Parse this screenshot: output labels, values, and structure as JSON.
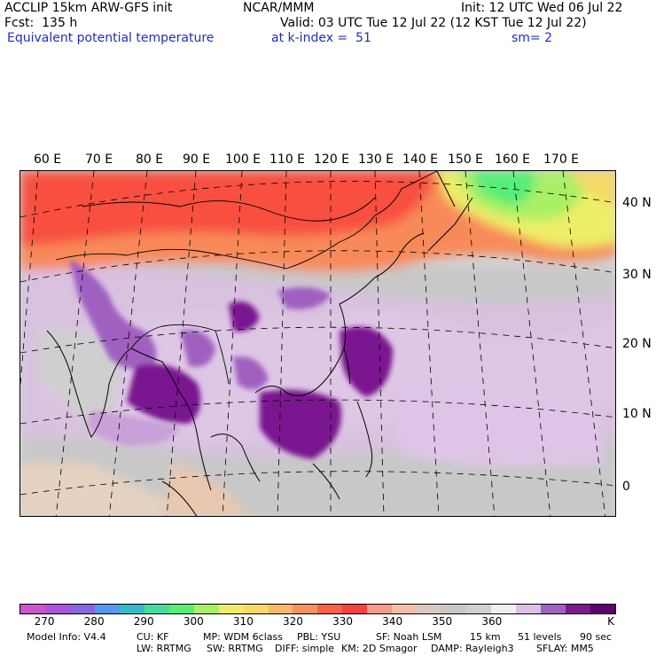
{
  "header": {
    "line1_left": "ACCLIP 15km ARW-GFS init",
    "line1_center": "NCAR/MMM",
    "line1_right": "Init: 12 UTC Wed 06 Jul 22",
    "line2_left": "Fcst:  135 h",
    "line2_right": "Valid: 03 UTC Tue 12 Jul 22 (12 KST Tue 12 Jul 22)",
    "field_name": "Equivalent potential temperature",
    "level": "at k-index =  51",
    "smooth": "sm= 2"
  },
  "map": {
    "lon_labels": [
      "60 E",
      "70 E",
      "80 E",
      "90 E",
      "100 E",
      "110 E",
      "120 E",
      "130 E",
      "140 E",
      "150 E",
      "160 E",
      "170 E"
    ],
    "lat_labels": [
      "40 N",
      "30 N",
      "20 N",
      "10 N",
      "0"
    ]
  },
  "colorbar": {
    "colors": [
      "#cc55cc",
      "#aa55dd",
      "#8866dd",
      "#5599ee",
      "#33bbcc",
      "#44dd99",
      "#55ee77",
      "#aaf066",
      "#eeee66",
      "#f6d866",
      "#f8b866",
      "#f89060",
      "#f86048",
      "#f84040",
      "#f89a88",
      "#f0c0a8",
      "#d8c8c0",
      "#c8c8c8",
      "#d0d0d0",
      "#f0f0f0",
      "#dcc0e4",
      "#a060c0",
      "#7a1890",
      "#600070"
    ],
    "ticks": [
      "270",
      "280",
      "290",
      "300",
      "310",
      "320",
      "330",
      "340",
      "350",
      "360"
    ],
    "unit": "K"
  },
  "footer": {
    "line1": [
      "Model Info: V4.4",
      "CU: KF",
      "MP: WDM 6class",
      "PBL: YSU",
      "SF: Noah LSM",
      "15 km",
      "51 levels",
      "90 sec"
    ],
    "line2": [
      "LW: RRTMG",
      "SW: RRTMG",
      "DIFF: simple",
      "KM: 2D Smagor",
      "DAMP: Rayleigh3",
      "SFLAY: MM5"
    ]
  }
}
